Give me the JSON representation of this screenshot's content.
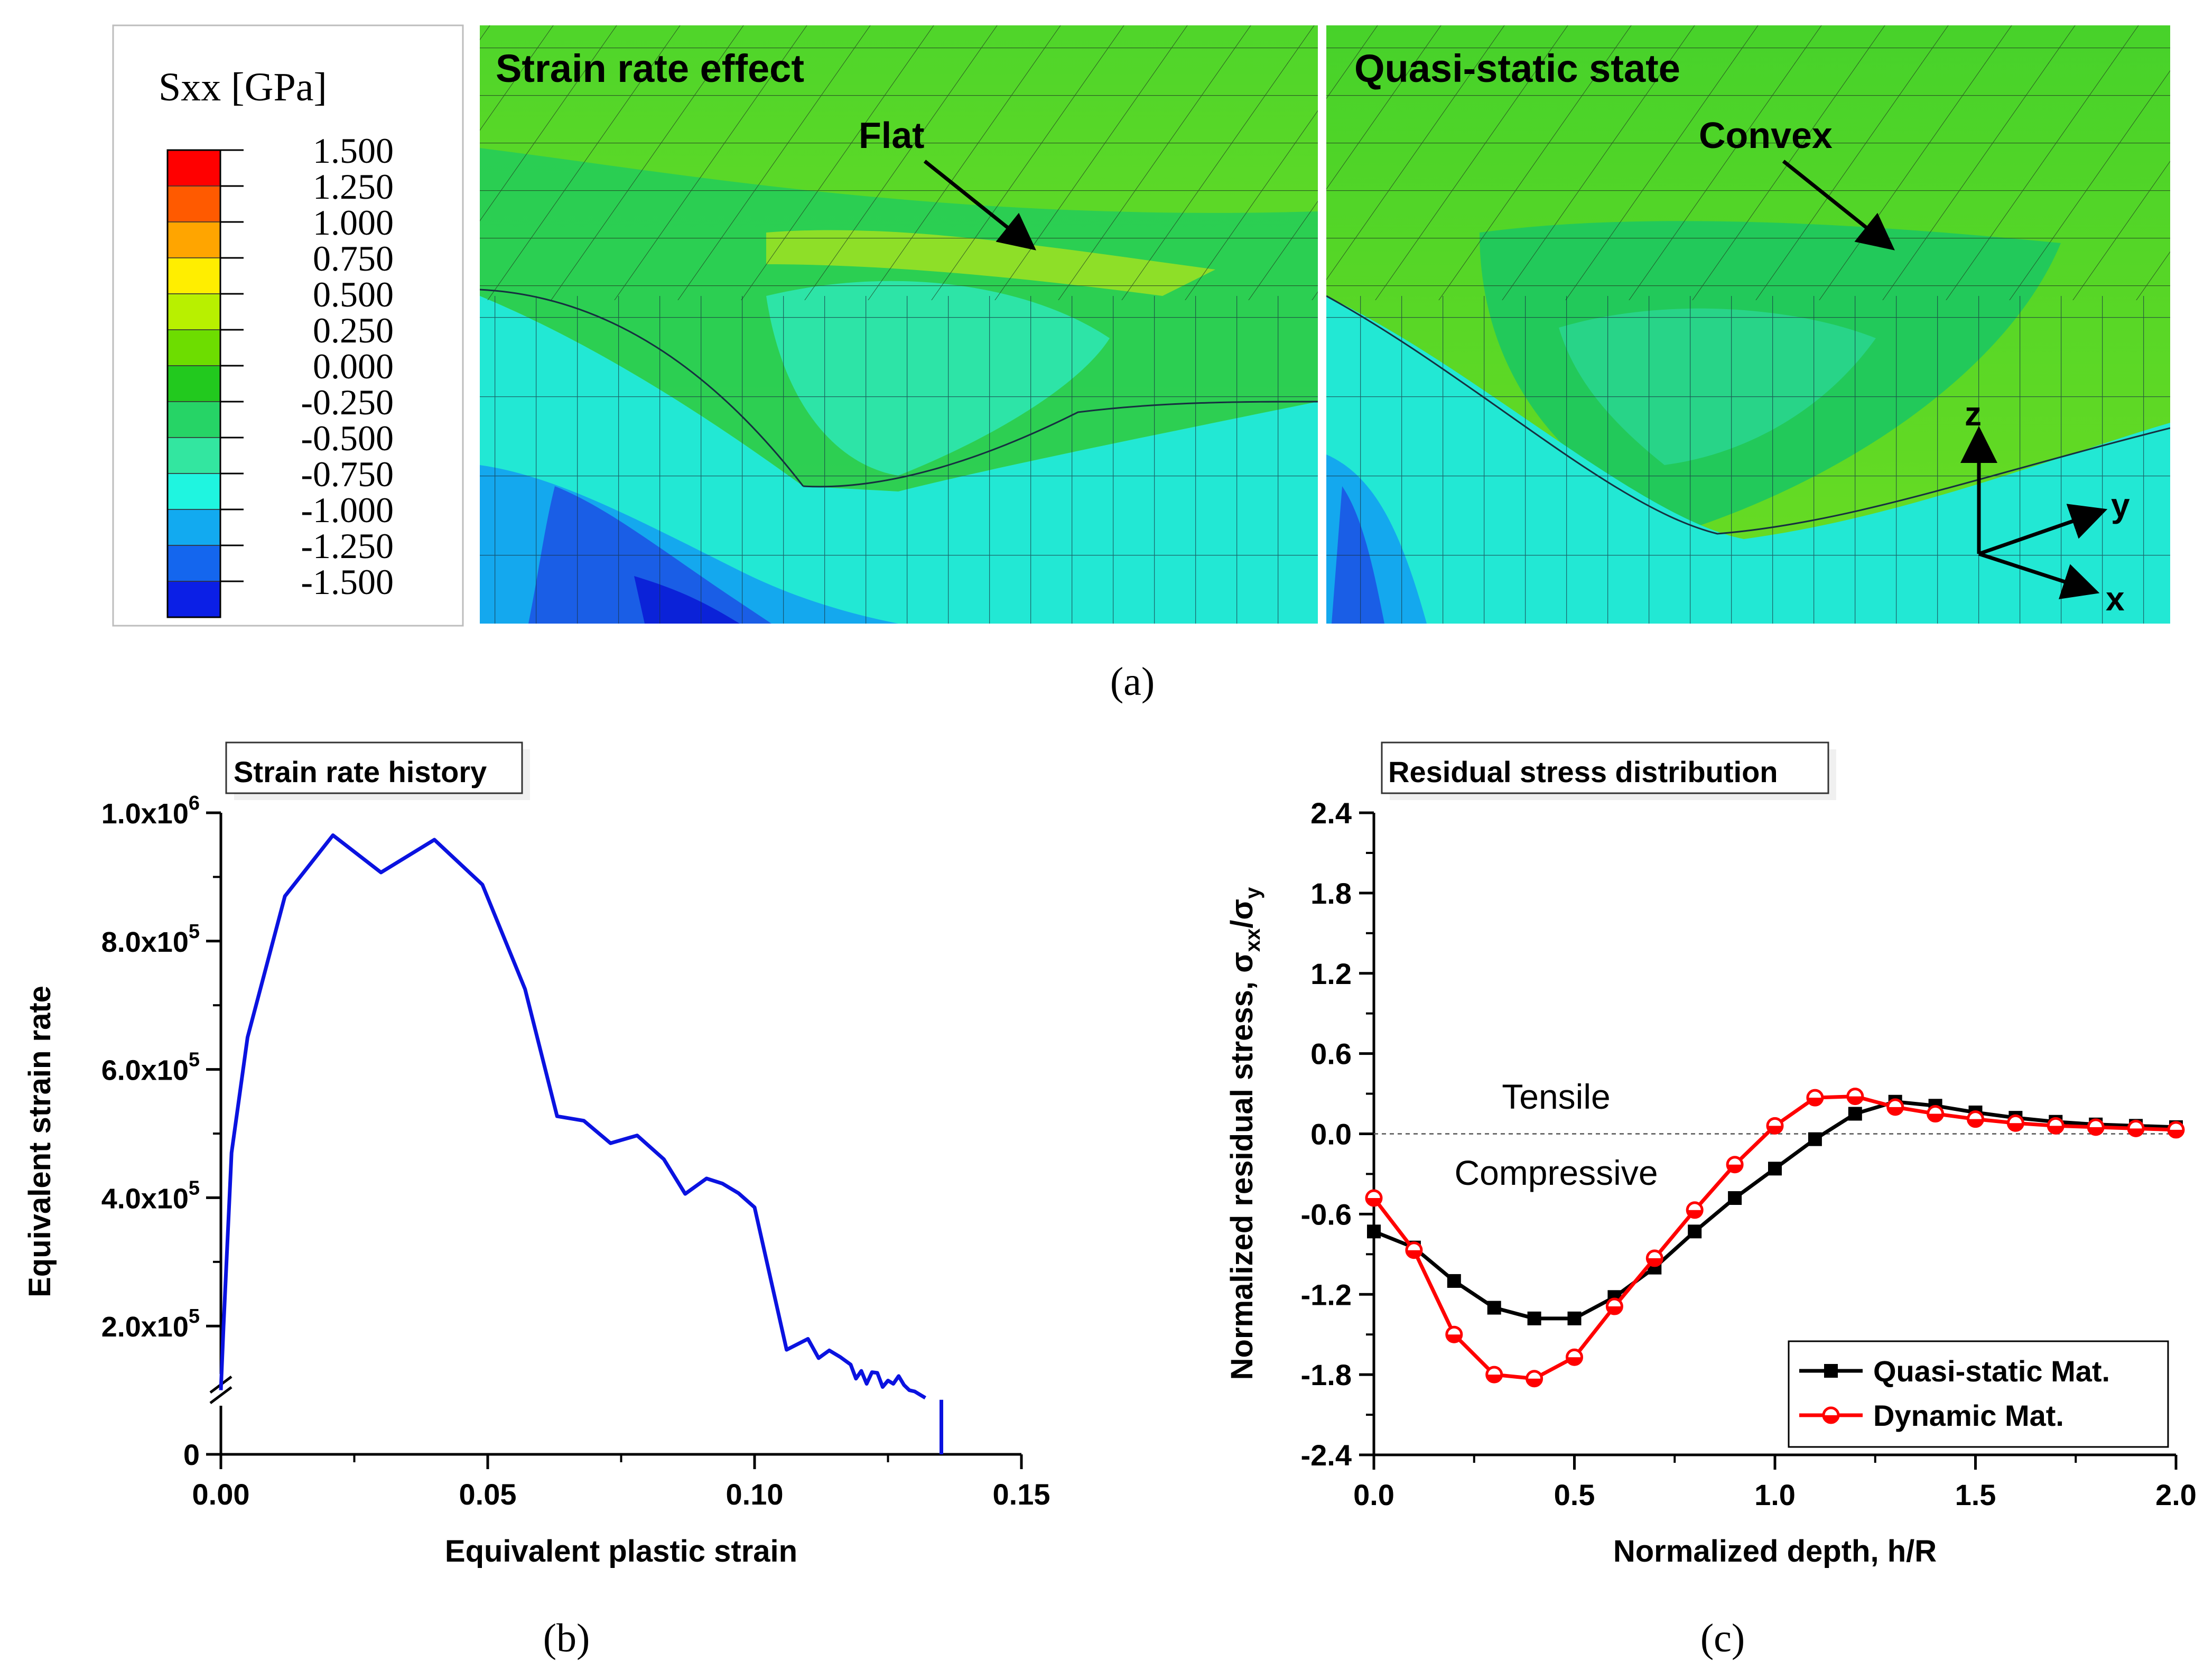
{
  "panel_a": {
    "legend": {
      "title": "Sxx [GPa]",
      "levels": [
        "1.500",
        "1.250",
        "1.000",
        "0.750",
        "0.500",
        "0.250",
        "0.000",
        "-0.250",
        "-0.500",
        "-0.750",
        "-1.000",
        "-1.250",
        "-1.500"
      ],
      "colors": [
        "#ff0000",
        "#ff5a00",
        "#ffa500",
        "#ffee00",
        "#b8f000",
        "#6ddd00",
        "#22c91e",
        "#26d466",
        "#33e6a0",
        "#1ff5e0",
        "#12aaf0",
        "#1466ee",
        "#0b1fe6"
      ]
    },
    "left_title": "Strain rate effect",
    "left_note": "Flat",
    "right_title": "Quasi-static state",
    "right_note": "Convex",
    "axis_z": "z",
    "axis_y": "y",
    "axis_x": "x",
    "caption": "(a)"
  },
  "panel_b": {
    "caption": "(b)"
  },
  "panel_c": {
    "caption": "(c)",
    "tensile_label": "Tensile",
    "compressive_label": "Compressive"
  },
  "chart_data": [
    {
      "type": "line",
      "title": "Strain rate history",
      "xlabel": "Equivalent plastic strain",
      "ylabel": "Equivalent strain rate",
      "xlim": [
        0,
        0.15
      ],
      "ylim": [
        0,
        1000000
      ],
      "axis_break": "broken y-axis just above 0",
      "x_ticks": [
        "0.00",
        "0.05",
        "0.10",
        "0.15"
      ],
      "y_ticks": [
        {
          "label": "0",
          "value": 0
        },
        {
          "mant": "2.0x10",
          "exp": "5",
          "value": 200000
        },
        {
          "mant": "4.0x10",
          "exp": "5",
          "value": 400000
        },
        {
          "mant": "6.0x10",
          "exp": "5",
          "value": 600000
        },
        {
          "mant": "8.0x10",
          "exp": "5",
          "value": 800000
        },
        {
          "mant": "1.0x10",
          "exp": "6",
          "value": 1000000
        }
      ],
      "series": [
        {
          "name": "Equivalent strain rate",
          "color": "#0a12e0",
          "x": [
            0.0,
            0.0005,
            0.002,
            0.005,
            0.012,
            0.021,
            0.03,
            0.04,
            0.049,
            0.057,
            0.063,
            0.068,
            0.073,
            0.078,
            0.083,
            0.087,
            0.091,
            0.094,
            0.097,
            0.1,
            0.106,
            0.11,
            0.112,
            0.114,
            0.116,
            0.118,
            0.119,
            0.12,
            0.121,
            0.122,
            0.123,
            0.124,
            0.125,
            0.126,
            0.127,
            0.128,
            0.129,
            0.13,
            0.131,
            0.132
          ],
          "y": [
            100000,
            200000,
            470000,
            650000,
            870000,
            965000,
            907000,
            958000,
            888000,
            725000,
            527000,
            520000,
            485000,
            497000,
            460000,
            406000,
            430000,
            422000,
            407000,
            385000,
            163000,
            180000,
            150000,
            162000,
            152000,
            140000,
            118000,
            130000,
            110000,
            128000,
            127000,
            105000,
            115000,
            110000,
            122000,
            108000,
            100000,
            98000,
            93000,
            88000
          ]
        },
        {
          "name": "Equivalent strain rate (drop)",
          "color": "#0a12e0",
          "x": [
            0.135,
            0.135
          ],
          "y": [
            85000,
            0
          ]
        }
      ]
    },
    {
      "type": "line",
      "title": "Residual stress distribution",
      "xlabel": "Normalized depth, h/R",
      "ylabel_main": "Normalized residual stress, σ",
      "ylabel_sub1": "xx",
      "ylabel_mid": "/σ",
      "ylabel_sub2": "y",
      "xlim": [
        0,
        2.0
      ],
      "ylim": [
        -2.4,
        2.4
      ],
      "x_ticks": [
        "0.0",
        "0.5",
        "1.0",
        "1.5",
        "2.0"
      ],
      "y_ticks": [
        "-2.4",
        "-1.8",
        "-1.2",
        "-0.6",
        "0.0",
        "0.6",
        "1.2",
        "1.8",
        "2.4"
      ],
      "series": [
        {
          "name": "Quasi-static Mat.",
          "color": "#000000",
          "marker": "square",
          "x": [
            0.0,
            0.1,
            0.2,
            0.3,
            0.4,
            0.5,
            0.6,
            0.7,
            0.8,
            0.9,
            1.0,
            1.1,
            1.2,
            1.3,
            1.4,
            1.5,
            1.6,
            1.7,
            1.8,
            1.9,
            2.0
          ],
          "y": [
            -0.73,
            -0.85,
            -1.1,
            -1.3,
            -1.38,
            -1.38,
            -1.22,
            -1.0,
            -0.73,
            -0.48,
            -0.26,
            -0.04,
            0.15,
            0.24,
            0.21,
            0.16,
            0.12,
            0.09,
            0.07,
            0.06,
            0.05
          ]
        },
        {
          "name": "Dynamic Mat.",
          "color": "#ff0000",
          "marker": "half-circle",
          "x": [
            0.0,
            0.1,
            0.2,
            0.3,
            0.4,
            0.5,
            0.6,
            0.7,
            0.8,
            0.9,
            1.0,
            1.1,
            1.2,
            1.3,
            1.4,
            1.5,
            1.6,
            1.7,
            1.8,
            1.9,
            2.0
          ],
          "y": [
            -0.48,
            -0.87,
            -1.5,
            -1.8,
            -1.83,
            -1.67,
            -1.29,
            -0.93,
            -0.57,
            -0.23,
            0.06,
            0.27,
            0.28,
            0.2,
            0.15,
            0.11,
            0.08,
            0.06,
            0.05,
            0.04,
            0.03
          ]
        }
      ]
    }
  ]
}
